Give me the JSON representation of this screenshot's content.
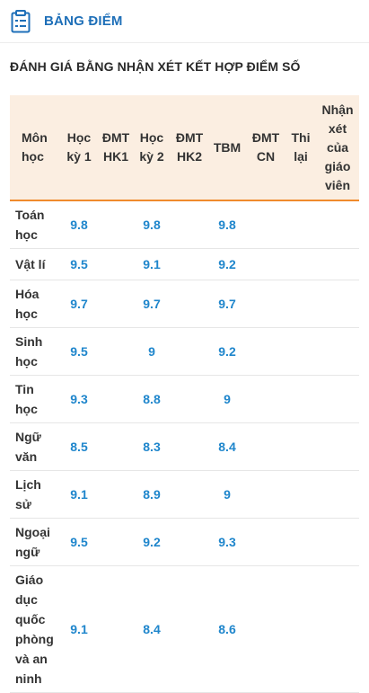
{
  "header": {
    "title": "BẢNG ĐIỂM",
    "icon": "report-card-icon",
    "accent_color": "#1e6fb8"
  },
  "section_title": "ĐÁNH GIÁ BẰNG NHẬN XÉT KẾT HỢP ĐIỂM SỐ",
  "table": {
    "columns": {
      "subject": "Môn học",
      "term1": "Học kỳ 1",
      "dmt1": "ĐMT HK1",
      "term2": "Học kỳ 2",
      "dmt2": "ĐMT HK2",
      "avg": "TBM",
      "dmtcn": "ĐMT CN",
      "retest": "Thi lại",
      "teacher_comment": "Nhận xét của giáo viên"
    },
    "rows": [
      {
        "subject": "Toán học",
        "term1": "9.8",
        "term2": "9.8",
        "avg": "9.8"
      },
      {
        "subject": "Vật lí",
        "term1": "9.5",
        "term2": "9.1",
        "avg": "9.2"
      },
      {
        "subject": "Hóa học",
        "term1": "9.7",
        "term2": "9.7",
        "avg": "9.7"
      },
      {
        "subject": "Sinh học",
        "term1": "9.5",
        "term2": "9",
        "avg": "9.2"
      },
      {
        "subject": "Tin học",
        "term1": "9.3",
        "term2": "8.8",
        "avg": "9"
      },
      {
        "subject": "Ngữ văn",
        "term1": "8.5",
        "term2": "8.3",
        "avg": "8.4"
      },
      {
        "subject": "Lịch sử",
        "term1": "9.1",
        "term2": "8.9",
        "avg": "9"
      },
      {
        "subject": "Ngoại ngữ",
        "term1": "9.5",
        "term2": "9.2",
        "avg": "9.3"
      },
      {
        "subject": "Giáo dục quốc phòng và an ninh",
        "term1": "9.1",
        "term2": "8.4",
        "avg": "8.6"
      }
    ]
  }
}
